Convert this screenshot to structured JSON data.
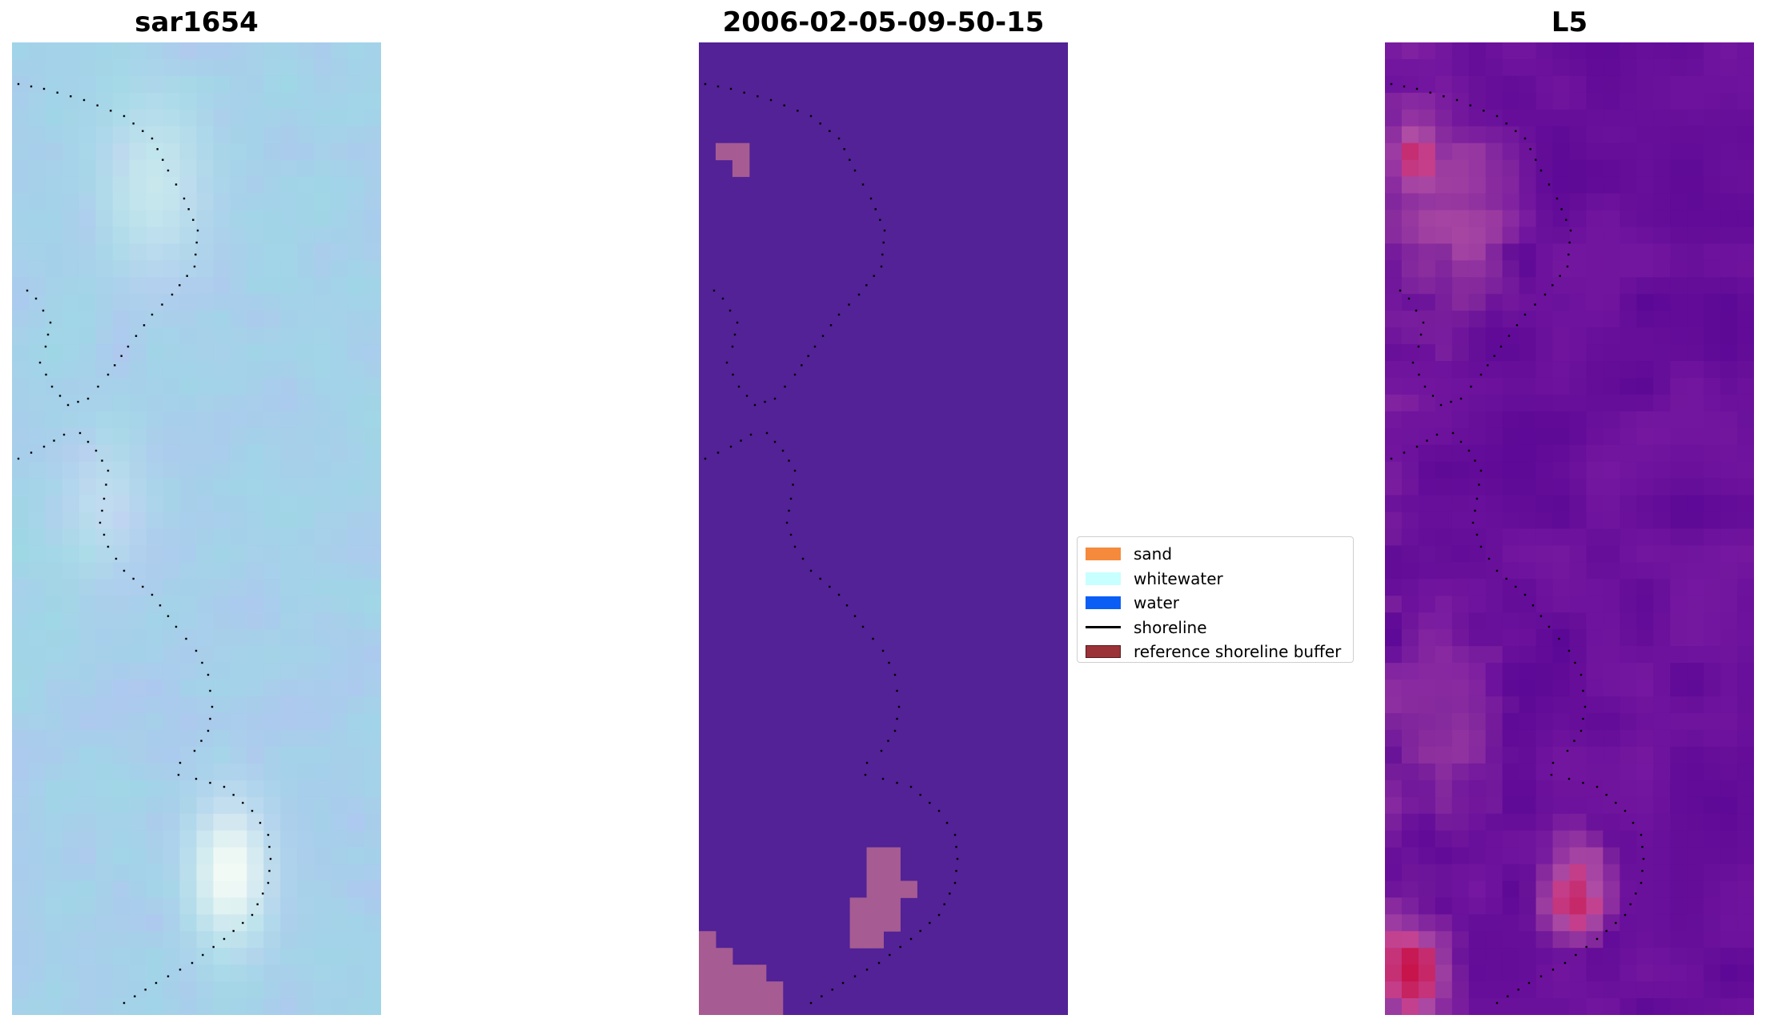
{
  "panels": [
    {
      "id": "rgb",
      "title": "sar1654"
    },
    {
      "id": "classified",
      "title": "2006-02-05-09-50-15"
    },
    {
      "id": "index",
      "title": "L5"
    }
  ],
  "legend": {
    "items": [
      {
        "label": "sand",
        "color": "#f58a3c",
        "kind": "patch"
      },
      {
        "label": "whitewater",
        "color": "#c8ffff",
        "kind": "patch"
      },
      {
        "label": "water",
        "color": "#0a5ef5",
        "kind": "patch"
      },
      {
        "label": "shoreline",
        "color": "#000000",
        "kind": "line"
      },
      {
        "label": "reference shoreline buffer",
        "color": "#9a3238",
        "kind": "patch"
      }
    ]
  },
  "colors": {
    "classified_background": "#522296",
    "reference_buffer_pixels": "#a65c92",
    "shoreline": "#000000"
  }
}
